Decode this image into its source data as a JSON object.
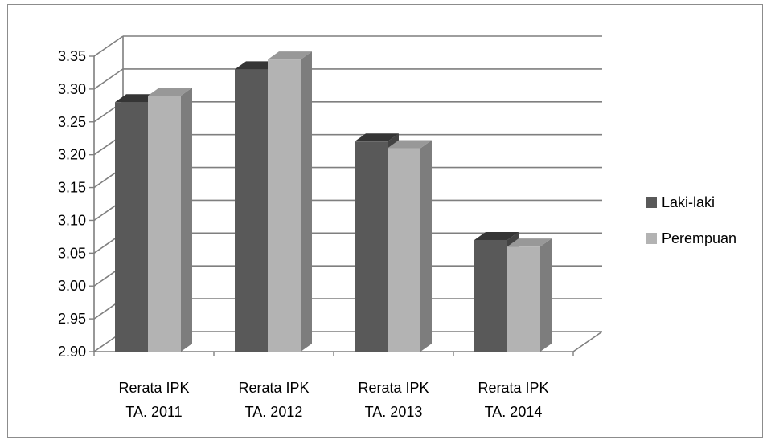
{
  "chart_data": {
    "type": "bar",
    "style": "3d-clustered-column",
    "categories": [
      [
        "Rerata IPK",
        "TA. 2011"
      ],
      [
        "Rerata IPK",
        "TA. 2012"
      ],
      [
        "Rerata IPK",
        "TA. 2013"
      ],
      [
        "Rerata IPK",
        "TA. 2014"
      ]
    ],
    "series": [
      {
        "name": "Laki-laki",
        "values": [
          3.28,
          3.33,
          3.22,
          3.07
        ],
        "color": "#595959"
      },
      {
        "name": "Perempuan",
        "values": [
          3.29,
          3.345,
          3.21,
          3.06
        ],
        "color": "#b3b3b3"
      }
    ],
    "y_ticks": [
      "2.90",
      "2.95",
      "3.00",
      "3.05",
      "3.10",
      "3.15",
      "3.20",
      "3.25",
      "3.30",
      "3.35"
    ],
    "ylim": [
      2.9,
      3.35
    ],
    "grid": true,
    "legend_position": "right"
  }
}
